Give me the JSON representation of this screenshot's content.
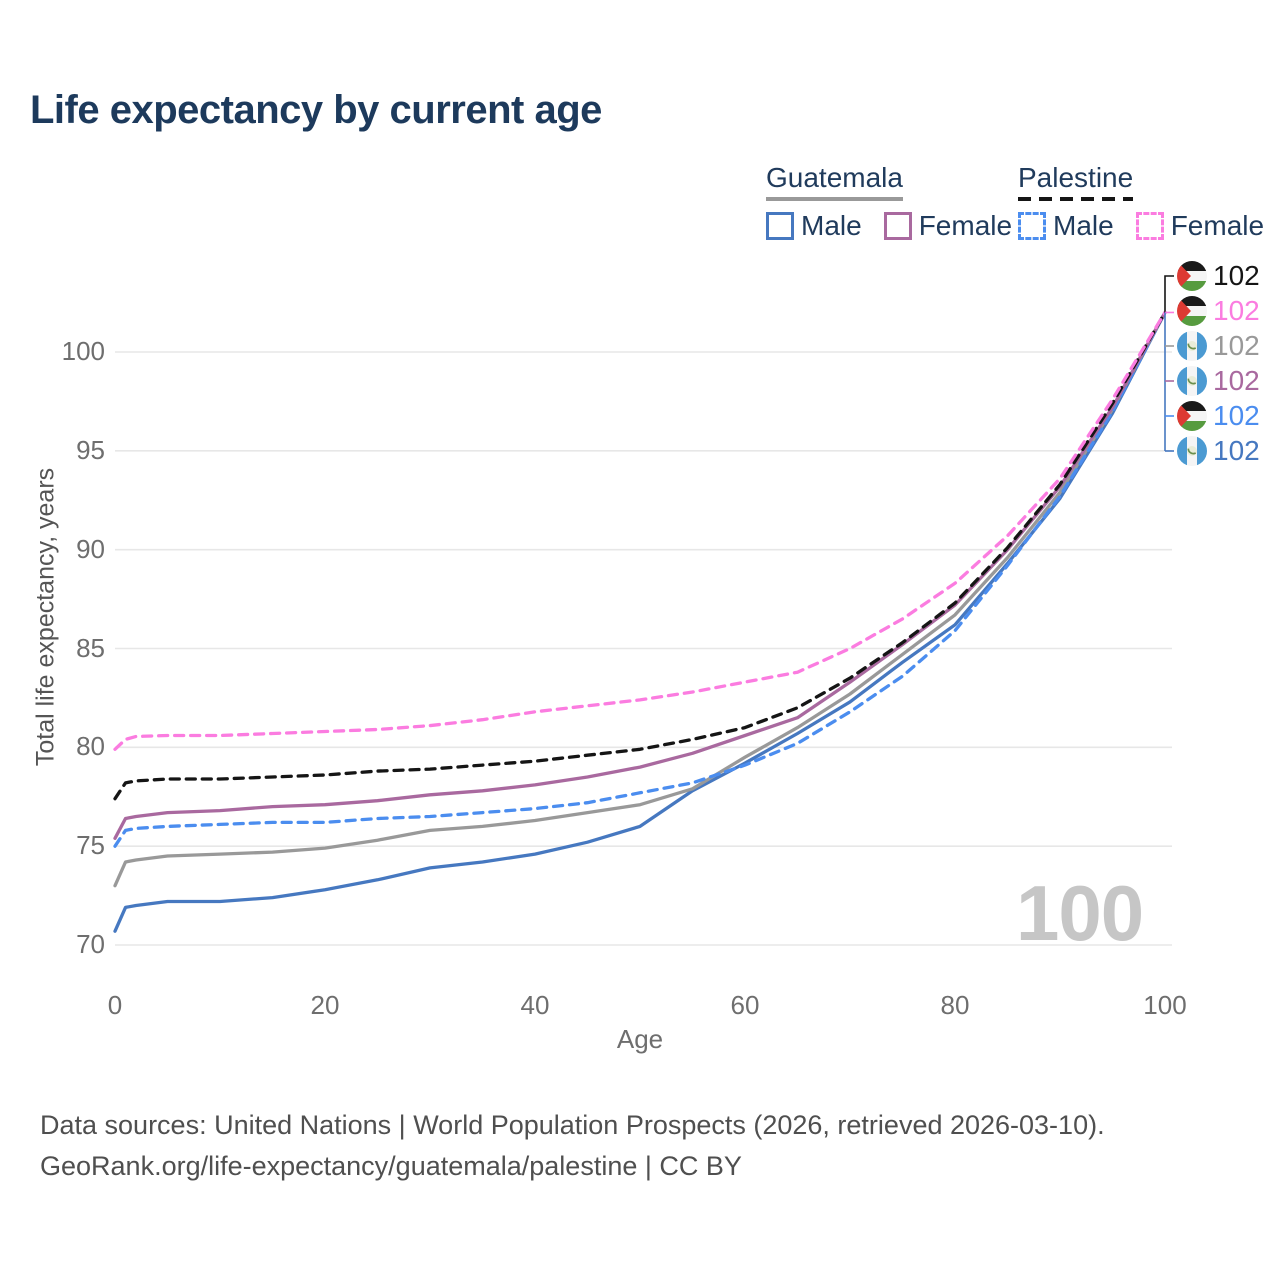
{
  "title": "Life expectancy by current age",
  "watermark": "100",
  "colors": {
    "title_text": "#1d3a5c",
    "guatemala_male": "#4678c0",
    "guatemala_female": "#a9699f",
    "guatemala_total": "#999999",
    "palestine_male": "#4b8def",
    "palestine_female": "#fb7ce0",
    "palestine_total": "#151515",
    "gridline": "#e7e7e7",
    "tick_text": "#6e6e6e",
    "watermark_text": "#c6c6c6"
  },
  "legend": {
    "groups": [
      {
        "title": "Guatemala",
        "underline_style": "solid",
        "underline_color": "#999999",
        "items": [
          {
            "label": "Male",
            "color": "#4678c0",
            "dashed": false
          },
          {
            "label": "Female",
            "color": "#a9699f",
            "dashed": false
          }
        ]
      },
      {
        "title": "Palestine",
        "underline_style": "dashed",
        "underline_color": "#151515",
        "items": [
          {
            "label": "Male",
            "color": "#4b8def",
            "dashed": true
          },
          {
            "label": "Female",
            "color": "#fb7ce0",
            "dashed": true
          }
        ]
      }
    ]
  },
  "chart_data": {
    "type": "line",
    "title": "Life expectancy by current age",
    "xlabel": "Age",
    "ylabel": "Total life expectancy, years",
    "xlim": [
      0,
      100
    ],
    "ylim": [
      70,
      102.5
    ],
    "x_ticks": [
      0,
      20,
      40,
      60,
      80,
      100
    ],
    "y_ticks": [
      70,
      75,
      80,
      85,
      90,
      95,
      100
    ],
    "grid": "horizontal-only",
    "legend_position": "top-right",
    "x": [
      0,
      1,
      2,
      5,
      10,
      15,
      20,
      25,
      30,
      35,
      40,
      45,
      50,
      55,
      60,
      65,
      70,
      75,
      80,
      85,
      90,
      95,
      100
    ],
    "series": [
      {
        "name": "Palestine Female",
        "country": "palestine",
        "sex": "female",
        "color": "#fb7ce0",
        "dashed": true,
        "end_value": 102,
        "values": [
          79.9,
          80.4,
          80.55,
          80.6,
          80.6,
          80.7,
          80.8,
          80.9,
          81.1,
          81.4,
          81.8,
          82.1,
          82.4,
          82.8,
          83.3,
          83.8,
          85.0,
          86.5,
          88.3,
          90.7,
          93.6,
          97.6,
          102
        ]
      },
      {
        "name": "Palestine Both sexes",
        "country": "palestine",
        "sex": "both",
        "color": "#151515",
        "dashed": true,
        "end_value": 102,
        "values": [
          77.4,
          78.2,
          78.3,
          78.4,
          78.4,
          78.5,
          78.6,
          78.8,
          78.9,
          79.1,
          79.3,
          79.6,
          79.9,
          80.4,
          81.0,
          82.0,
          83.5,
          85.3,
          87.3,
          90.1,
          93.3,
          97.4,
          102
        ]
      },
      {
        "name": "Guatemala Female",
        "country": "guatemala",
        "sex": "female",
        "color": "#a9699f",
        "dashed": false,
        "end_value": 102,
        "values": [
          75.4,
          76.4,
          76.5,
          76.7,
          76.8,
          77.0,
          77.1,
          77.3,
          77.6,
          77.8,
          78.1,
          78.5,
          79.0,
          79.7,
          80.6,
          81.5,
          83.3,
          85.2,
          87.2,
          90.0,
          93.2,
          97.2,
          102
        ]
      },
      {
        "name": "Palestine Male",
        "country": "palestine",
        "sex": "male",
        "color": "#4b8def",
        "dashed": true,
        "end_value": 102,
        "values": [
          75.0,
          75.8,
          75.9,
          76.0,
          76.1,
          76.2,
          76.2,
          76.4,
          76.5,
          76.7,
          76.9,
          77.2,
          77.7,
          78.2,
          79.1,
          80.2,
          81.8,
          83.6,
          85.9,
          89.2,
          92.7,
          97.0,
          102
        ]
      },
      {
        "name": "Guatemala Both sexes",
        "country": "guatemala",
        "sex": "both",
        "color": "#999999",
        "dashed": false,
        "end_value": 102,
        "values": [
          73.0,
          74.2,
          74.3,
          74.5,
          74.6,
          74.7,
          74.9,
          75.3,
          75.8,
          76.0,
          76.3,
          76.7,
          77.1,
          77.9,
          79.5,
          81.0,
          82.7,
          84.7,
          86.7,
          89.6,
          92.9,
          97.1,
          102
        ]
      },
      {
        "name": "Guatemala Male",
        "country": "guatemala",
        "sex": "male",
        "color": "#4678c0",
        "dashed": false,
        "end_value": 102,
        "values": [
          70.7,
          71.9,
          72.0,
          72.2,
          72.2,
          72.4,
          72.8,
          73.3,
          73.9,
          74.2,
          74.6,
          75.2,
          76.0,
          77.8,
          79.2,
          80.7,
          82.3,
          84.3,
          86.2,
          89.3,
          92.6,
          96.9,
          102
        ]
      }
    ]
  },
  "end_labels": [
    {
      "flag": "palestine",
      "value": "102",
      "color": "#151515"
    },
    {
      "flag": "palestine",
      "value": "102",
      "color": "#fb7ce0"
    },
    {
      "flag": "guatemala",
      "value": "102",
      "color": "#999999"
    },
    {
      "flag": "guatemala",
      "value": "102",
      "color": "#a9699f"
    },
    {
      "flag": "palestine",
      "value": "102",
      "color": "#4b8def"
    },
    {
      "flag": "guatemala",
      "value": "102",
      "color": "#4678c0"
    }
  ],
  "footer": {
    "line1": "Data sources: United Nations | World Population Prospects (2026, retrieved 2026-03-10).",
    "line2": "GeoRank.org/life-expectancy/guatemala/palestine | CC BY"
  }
}
